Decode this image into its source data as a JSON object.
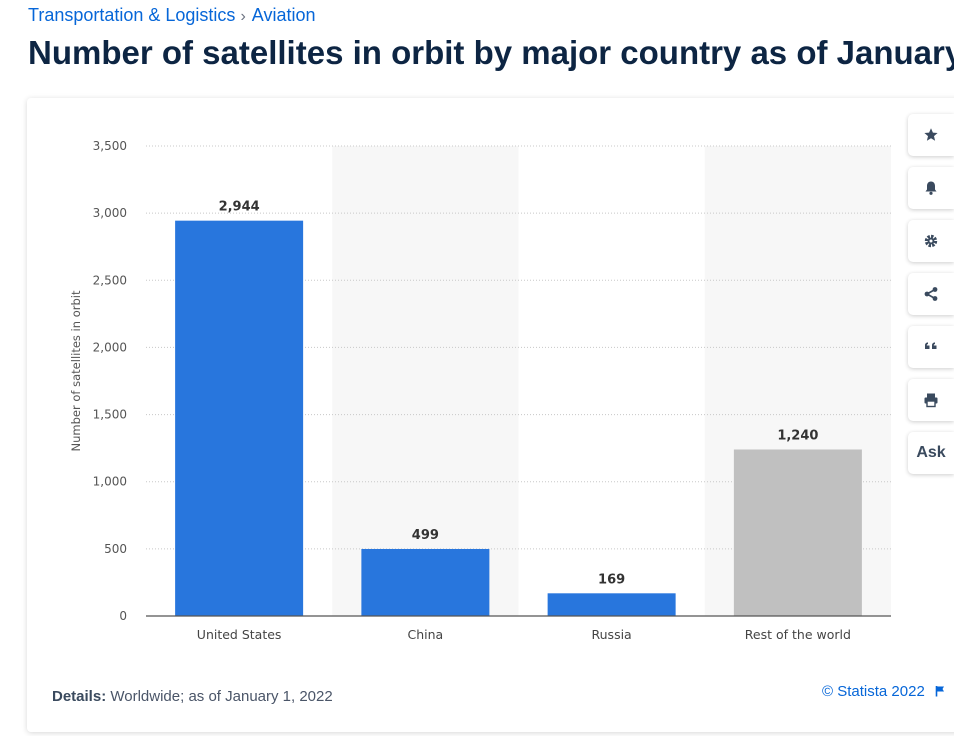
{
  "breadcrumb": {
    "items": [
      "Transportation & Logistics",
      "Aviation"
    ],
    "separator": "›"
  },
  "page_title": "Number of satellites in orbit by major country as of January",
  "details": {
    "label": "Details:",
    "text": "Worldwide; as of January 1, 2022"
  },
  "copyright": "© Statista 2022",
  "toolbar": {
    "items": [
      "star-icon",
      "bell-icon",
      "gear-icon",
      "share-icon",
      "quote-icon",
      "print-icon"
    ],
    "ask_label": "Ask"
  },
  "colors": {
    "primary_bar": "#2876dd",
    "rest_bar": "#c0c0c0",
    "title": "#0d2543",
    "link": "#0666d8"
  },
  "chart_data": {
    "type": "bar",
    "categories": [
      "United States",
      "China",
      "Russia",
      "Rest of the world"
    ],
    "values": [
      2944,
      499,
      169,
      1240
    ],
    "data_labels": [
      "2,944",
      "499",
      "169",
      "1,240"
    ],
    "bar_colors": [
      "#2876dd",
      "#2876dd",
      "#2876dd",
      "#c0c0c0"
    ],
    "ylabel": "Number of satellites in orbit",
    "xlabel": "",
    "ylim": [
      0,
      3500
    ],
    "yticks": [
      0,
      500,
      1000,
      1500,
      2000,
      2500,
      3000,
      3500
    ],
    "ytick_labels": [
      "0",
      "500",
      "1,000",
      "1,500",
      "2,000",
      "2,500",
      "3,000",
      "3,500"
    ],
    "grid": true,
    "legend": "none"
  }
}
